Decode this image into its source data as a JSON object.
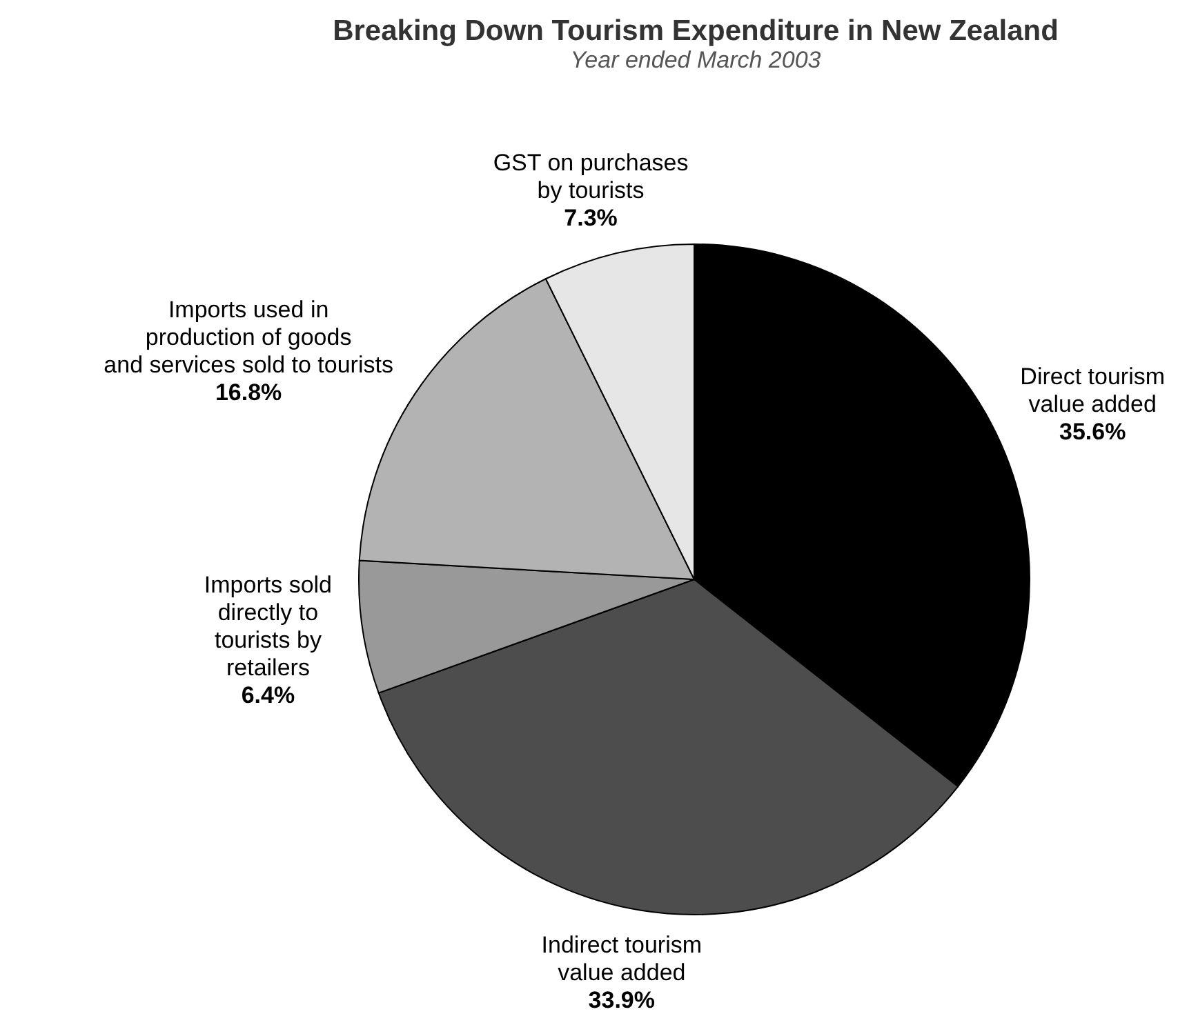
{
  "chart_data": {
    "type": "pie",
    "title": "Breaking Down Tourism Expenditure in New Zealand",
    "subtitle": "Year ended March 2003",
    "categories": [
      "Direct tourism\nvalue added",
      "Indirect tourism\nvalue added",
      "Imports sold\ndirectly to\ntourists by\nretailers",
      "Imports used in\nproduction of goods\nand services sold to tourists",
      "GST on purchases\nby tourists"
    ],
    "values": [
      35.6,
      33.9,
      6.4,
      16.8,
      7.3
    ],
    "colors": [
      "#000000",
      "#4d4d4d",
      "#999999",
      "#b3b3b3",
      "#e6e6e6"
    ],
    "value_labels": [
      "35.6%",
      "33.9%",
      "6.4%",
      "16.8%",
      "7.3%"
    ]
  }
}
